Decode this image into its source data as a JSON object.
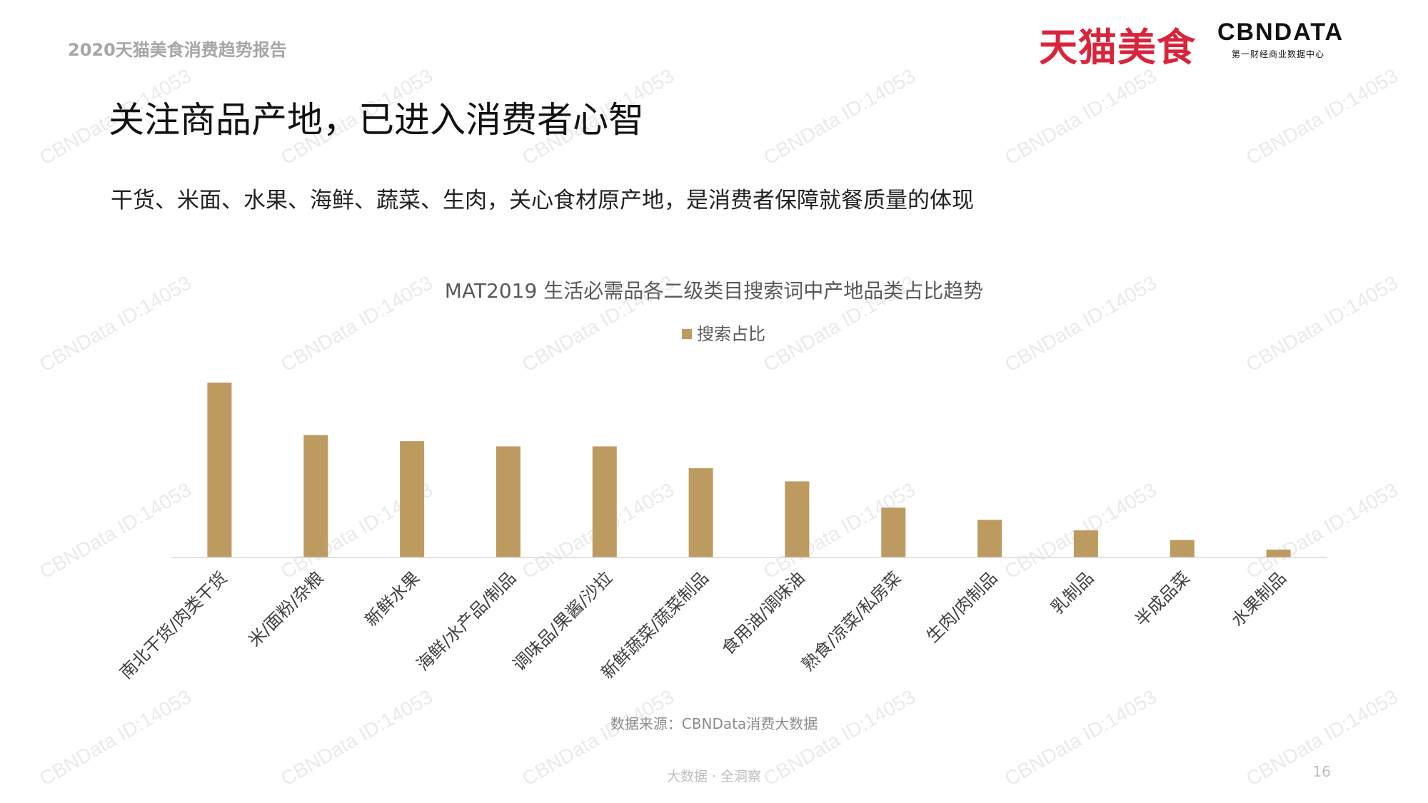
{
  "header": {
    "report_title": "2020天猫美食消费趋势报告",
    "logo_tmall": "天猫美食",
    "logo_cbn_brand": "CBNDATA",
    "logo_cbn_tagline": "第一财经商业数据中心"
  },
  "main": {
    "title": "关注商品产地，已进入消费者心智",
    "subtitle": "干货、米面、水果、海鲜、蔬菜、生肉，关心食材原产地，是消费者保障就餐质量的体现"
  },
  "chart_data": {
    "type": "bar",
    "title": "MAT2019 生活必需品各二级类目搜索词中产地品类占比趋势",
    "legend_position": "top",
    "grid": false,
    "y_axis_visible": false,
    "bar_color": "#bd9a5f",
    "categories": [
      "南北干货/肉类干货",
      "米/面粉/杂粮",
      "新鲜水果",
      "海鲜/水产品/制品",
      "调味品/果酱/沙拉",
      "新鲜蔬菜/蔬菜制品",
      "食用油/调味油",
      "熟食/凉菜/私房菜",
      "生肉/肉制品",
      "乳制品",
      "半成品菜",
      "水果制品"
    ],
    "series": [
      {
        "name": "搜索占比",
        "values": [
          100,
          70,
          66.5,
          63.5,
          63.5,
          51,
          43.5,
          28.5,
          21.5,
          15.5,
          10,
          4.5
        ]
      }
    ],
    "ylim": [
      0,
      100
    ]
  },
  "source_text": "数据来源：CBNData消费大数据",
  "footer_text": "大数据 · 全洞察",
  "page_number": "16",
  "watermark_text": "CBNData ID:14053"
}
